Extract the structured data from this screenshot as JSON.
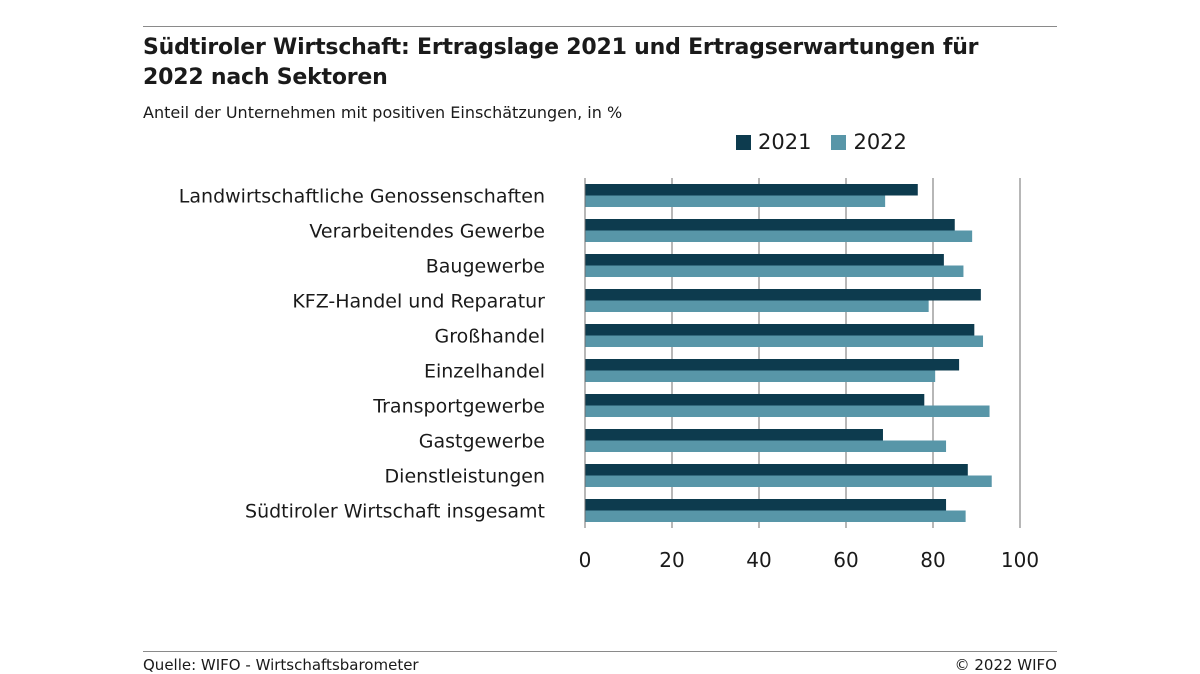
{
  "title": "Südtiroler Wirtschaft: Ertragslage 2021 und Ertragserwartungen für 2022 nach Sektoren",
  "subtitle": "Anteil der Unternehmen mit positiven Einschätzungen, in %",
  "footer": {
    "source": "Quelle: WIFO - Wirtschaftsbarometer",
    "copyright": "© 2022 WIFO"
  },
  "colors": {
    "series_2021": "#0d3b4e",
    "series_2022": "#5896a8",
    "gridline": "#6f6f6f"
  },
  "chart_data": {
    "type": "bar",
    "orientation": "horizontal",
    "categories": [
      "Landwirtschaftliche Genossenschaften",
      "Verarbeitendes Gewerbe",
      "Baugewerbe",
      "KFZ-Handel und Reparatur",
      "Großhandel",
      "Einzelhandel",
      "Transportgewerbe",
      "Gastgewerbe",
      "Dienstleistungen",
      "Südtiroler Wirtschaft insgesamt"
    ],
    "series": [
      {
        "name": "2021",
        "values": [
          76.5,
          85,
          82.5,
          91,
          89.5,
          86,
          78,
          68.5,
          88,
          83
        ]
      },
      {
        "name": "2022",
        "values": [
          69,
          89,
          87,
          79,
          91.5,
          80.5,
          93,
          83,
          93.5,
          87.5
        ]
      }
    ],
    "xlim": [
      0,
      100
    ],
    "xticks": [
      0,
      20,
      40,
      60,
      80,
      100
    ],
    "legend_position": "top-right",
    "grid": "vertical"
  }
}
